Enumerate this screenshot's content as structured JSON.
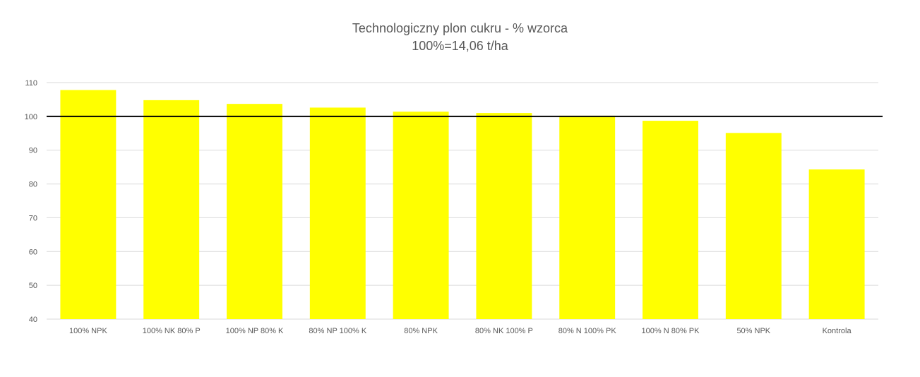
{
  "chart_data": {
    "type": "bar",
    "title": "Technologiczny plon cukru - % wzorca",
    "subtitle": "100%=14,06 t/ha",
    "categories": [
      "100% NPK",
      "100% NK 80% P",
      "100% NP 80% K",
      "80% NP 100% K",
      "80% NPK",
      "80% NK 100% P",
      "80% N 100% PK",
      "100% N 80% PK",
      "50% NPK",
      "Kontrola"
    ],
    "values": [
      107.8,
      104.8,
      103.7,
      102.6,
      101.4,
      101.0,
      100.2,
      98.7,
      95.1,
      84.3
    ],
    "ylim": [
      40,
      110
    ],
    "yticks": [
      40,
      50,
      60,
      70,
      80,
      90,
      100,
      110
    ],
    "reference_line": 100,
    "grid": true,
    "bar_color": "#FFFF00",
    "reference_line_color": "#000000",
    "grid_color": "#D9D9D9"
  }
}
